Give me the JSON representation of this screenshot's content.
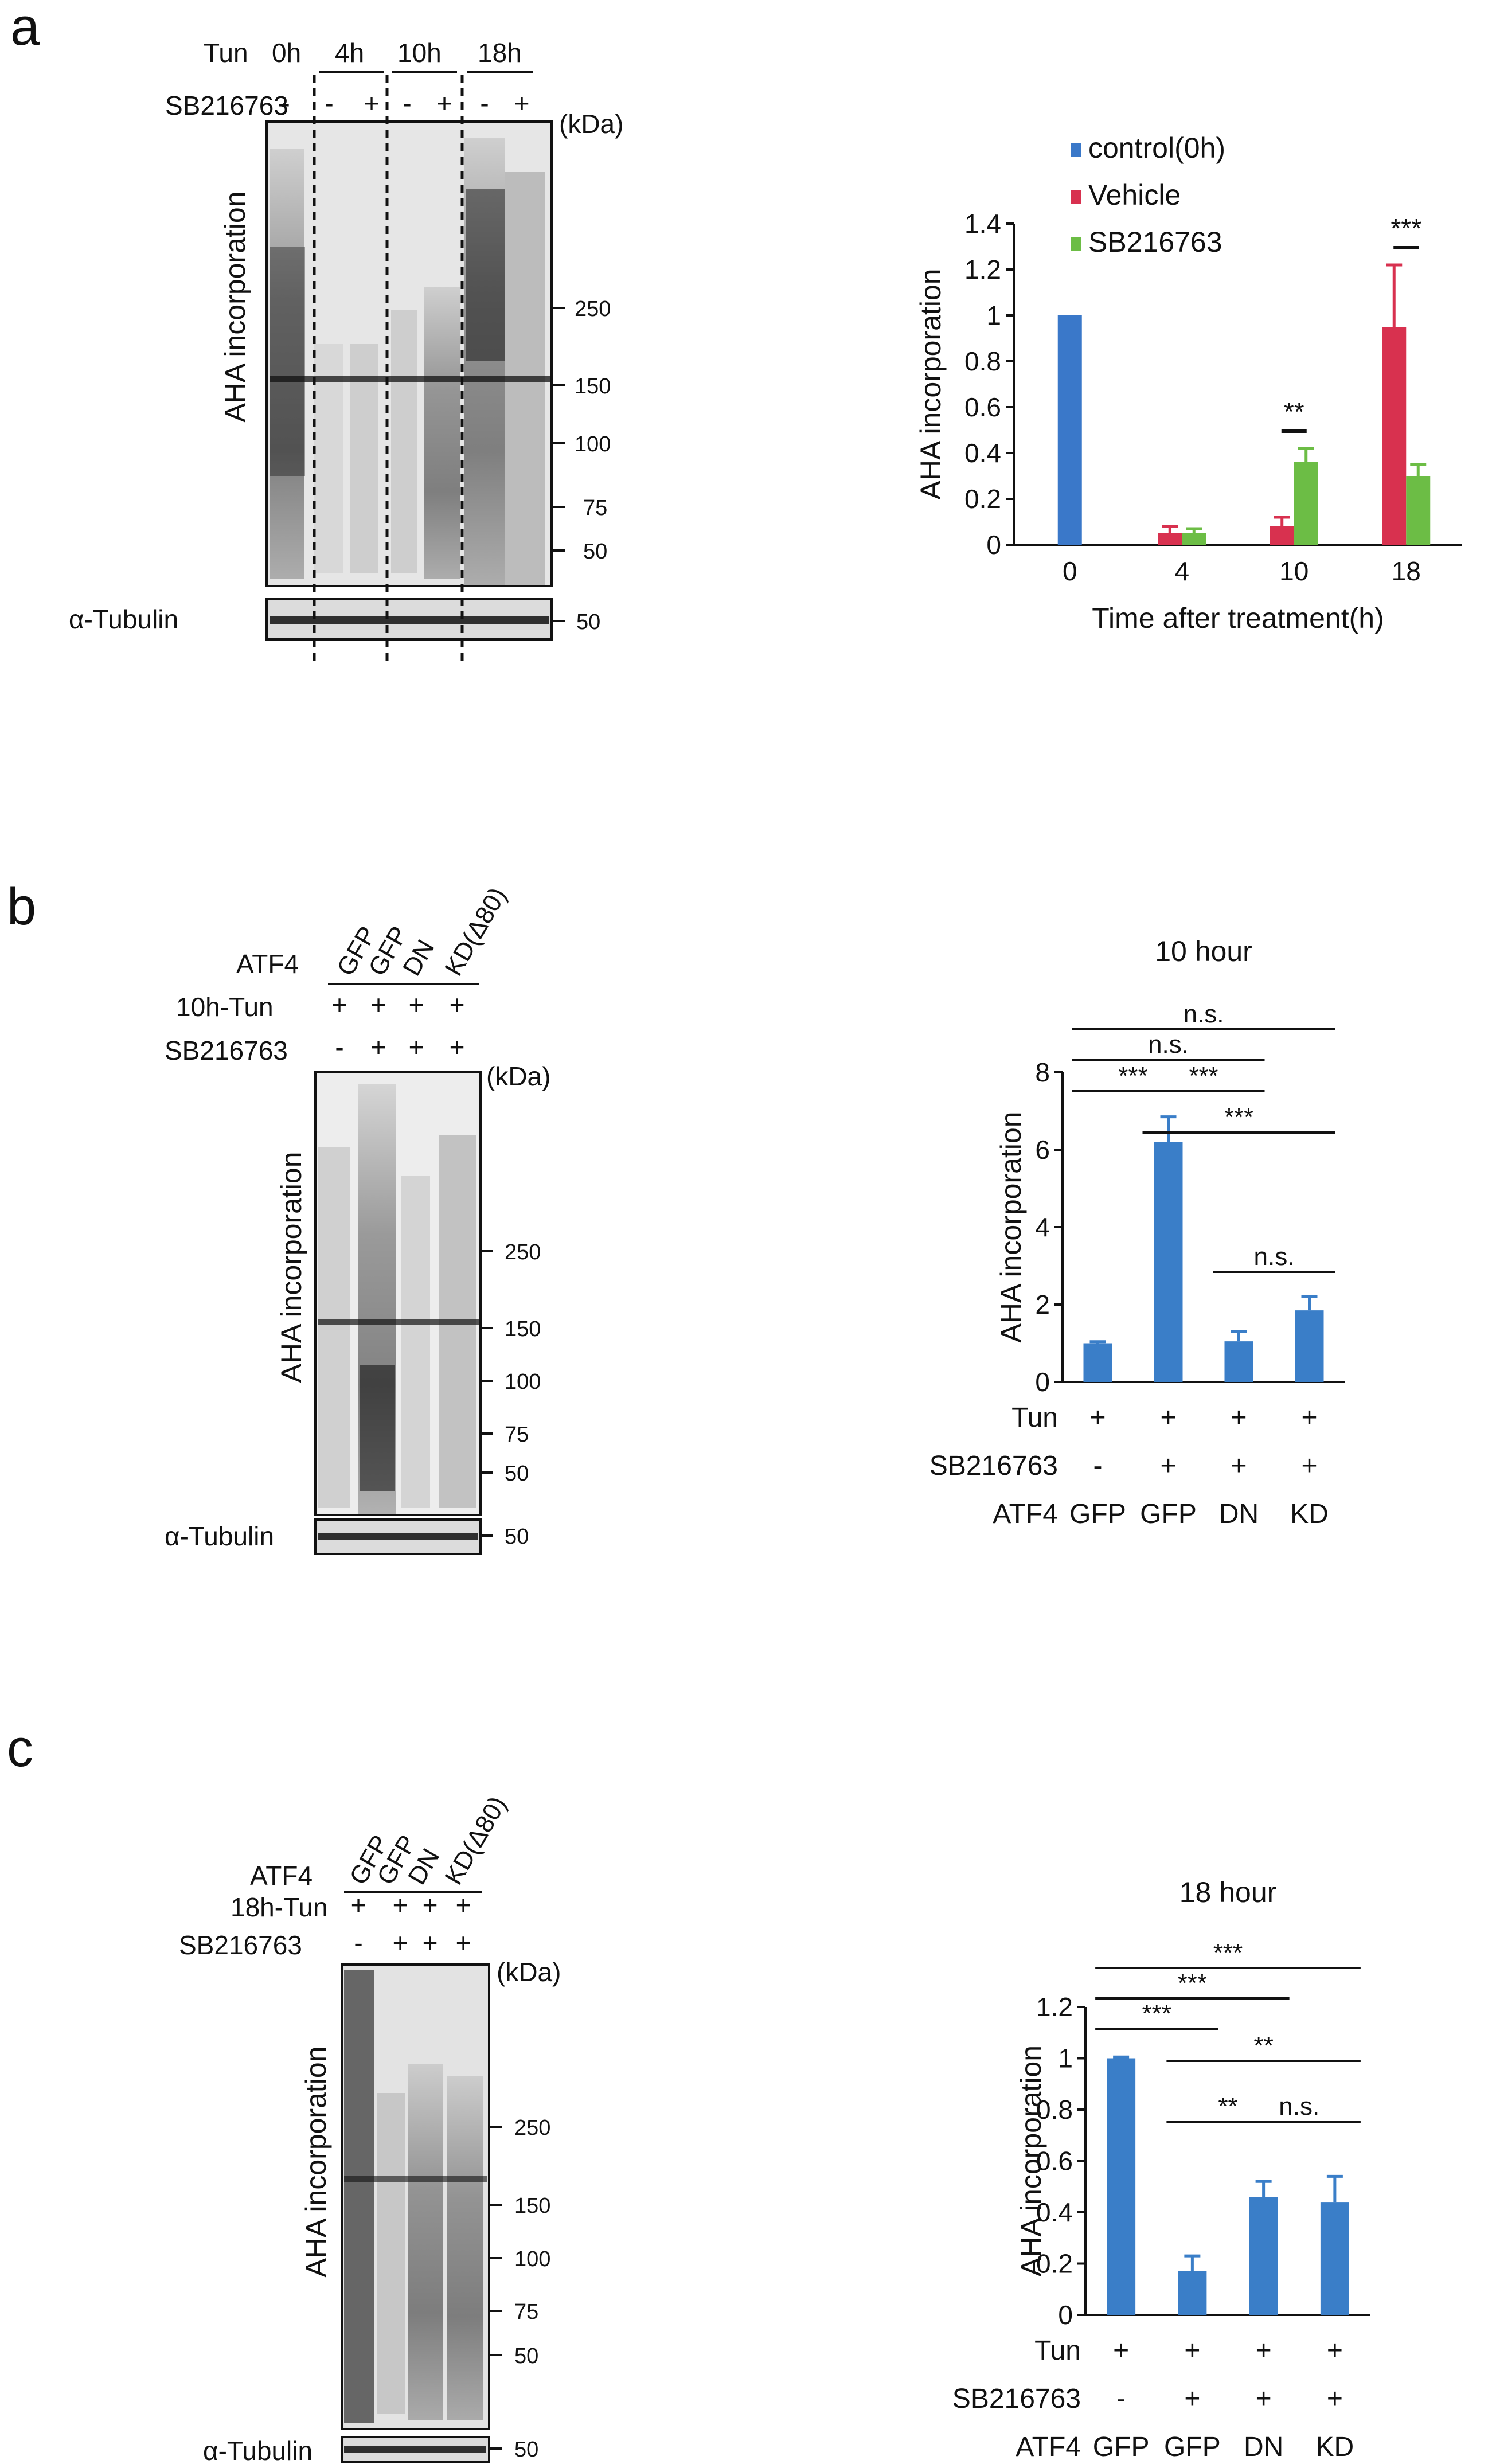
{
  "panels": {
    "a": {
      "letter": "a",
      "blot": {
        "row_tun": "Tun",
        "row_sb": "SB216763",
        "time_groups": [
          "0h",
          "4h",
          "10h",
          "18h"
        ],
        "sb_signs": [
          "-",
          "-",
          "+",
          "-",
          "+",
          "-",
          "+"
        ],
        "kda": "(kDa)",
        "markers": [
          "250",
          "150",
          "100",
          "75",
          "50"
        ],
        "ylabel": "AHA   incorporation",
        "tubulin_label": "α-Tubulin",
        "tubulin_marker": "50"
      }
    },
    "b": {
      "letter": "b",
      "blot": {
        "atf4_label": "ATF4",
        "atf4_cols": [
          "GFP",
          "GFP",
          "DN",
          "KD(Δ80)"
        ],
        "row_tun": "10h-Tun",
        "tun_signs": [
          "+",
          "+",
          "+",
          "+"
        ],
        "row_sb": "SB216763",
        "sb_signs": [
          "-",
          "+",
          "+",
          "+"
        ],
        "kda": "(kDa)",
        "markers": [
          "250",
          "150",
          "100",
          "75",
          "50"
        ],
        "ylabel": "AHA    incorporation",
        "tubulin_label": "α-Tubulin",
        "tubulin_marker": "50"
      }
    },
    "c": {
      "letter": "c",
      "blot": {
        "atf4_label": "ATF4",
        "atf4_cols": [
          "GFP",
          "GFP",
          "DN",
          "KD(Δ80)"
        ],
        "row_tun": "18h-Tun",
        "tun_signs": [
          "+",
          "+",
          "+",
          "+"
        ],
        "row_sb": "SB216763",
        "sb_signs": [
          "-",
          "+",
          "+",
          "+"
        ],
        "kda": "(kDa)",
        "markers": [
          "250",
          "150",
          "100",
          "75",
          "50"
        ],
        "ylabel": "AHA  incorporation",
        "tubulin_label": "α-Tubulin",
        "tubulin_marker": "50"
      }
    }
  },
  "chart_data": [
    {
      "panel": "a",
      "type": "bar",
      "title": "",
      "xlabel": "Time after treatment(h)",
      "ylabel": "AHA incorporation",
      "ylim": [
        0,
        1.4
      ],
      "yticks": [
        "0",
        "0.2",
        "0.4",
        "0.6",
        "0.8",
        "1",
        "1.2",
        "1.4"
      ],
      "categories": [
        "0",
        "4",
        "10",
        "18"
      ],
      "legend_position": "top",
      "series": [
        {
          "name": "control(0h)",
          "color": "#3a78c9",
          "values": [
            1.0,
            null,
            null,
            null
          ],
          "errors": [
            0,
            null,
            null,
            null
          ]
        },
        {
          "name": "Vehicle",
          "color": "#d8314f",
          "values": [
            null,
            0.05,
            0.08,
            0.95
          ],
          "errors": [
            null,
            0.03,
            0.04,
            0.27
          ]
        },
        {
          "name": "SB216763",
          "color": "#6cbd45",
          "values": [
            null,
            0.05,
            0.36,
            0.3
          ],
          "errors": [
            null,
            0.02,
            0.06,
            0.05
          ]
        }
      ],
      "annotations": [
        {
          "text": "**",
          "category": "10"
        },
        {
          "text": "***",
          "category": "18"
        }
      ]
    },
    {
      "panel": "b",
      "type": "bar",
      "title": "10 hour",
      "xlabel": "",
      "ylabel": "AHA incorporation",
      "ylim": [
        0,
        8
      ],
      "yticks": [
        "0",
        "2",
        "4",
        "6",
        "8"
      ],
      "color": "#3a7ec8",
      "values": [
        1.0,
        6.2,
        1.05,
        1.85
      ],
      "errors": [
        0.04,
        0.65,
        0.25,
        0.35
      ],
      "table": {
        "rows": [
          {
            "label": "Tun",
            "cells": [
              "+",
              "+",
              "+",
              "+"
            ]
          },
          {
            "label": "SB216763",
            "cells": [
              "-",
              "+",
              "+",
              "+"
            ]
          },
          {
            "label": "ATF4",
            "cells": [
              "GFP",
              "GFP",
              "DN",
              "KD"
            ]
          }
        ]
      },
      "significance": [
        {
          "from": 1,
          "to": 4,
          "text": "n.s."
        },
        {
          "from": 1,
          "to": 3,
          "text": "n.s."
        },
        {
          "from": 1,
          "to": 2,
          "text": "***"
        },
        {
          "from": 2,
          "to": 3,
          "text": "***"
        },
        {
          "from": 2,
          "to": 4,
          "text": "***"
        },
        {
          "from": 3,
          "to": 4,
          "text": "n.s."
        }
      ]
    },
    {
      "panel": "c",
      "type": "bar",
      "title": "18 hour",
      "xlabel": "",
      "ylabel": "AHA incorporation",
      "ylim": [
        0,
        1.2
      ],
      "yticks": [
        "0",
        "0.2",
        "0.4",
        "0.6",
        "0.8",
        "1",
        "1.2"
      ],
      "color": "#3a7ec8",
      "values": [
        1.0,
        0.17,
        0.46,
        0.44
      ],
      "errors": [
        0.005,
        0.06,
        0.06,
        0.1
      ],
      "table": {
        "rows": [
          {
            "label": "Tun",
            "cells": [
              "+",
              "+",
              "+",
              "+"
            ]
          },
          {
            "label": "SB216763",
            "cells": [
              "-",
              "+",
              "+",
              "+"
            ]
          },
          {
            "label": "ATF4",
            "cells": [
              "GFP",
              "GFP",
              "DN",
              "KD"
            ]
          }
        ]
      },
      "significance": [
        {
          "from": 1,
          "to": 4,
          "text": "***"
        },
        {
          "from": 1,
          "to": 3,
          "text": "***"
        },
        {
          "from": 1,
          "to": 2,
          "text": "***"
        },
        {
          "from": 2,
          "to": 4,
          "text": "**"
        },
        {
          "from": 2,
          "to": 3,
          "text": "**"
        },
        {
          "from": 3,
          "to": 4,
          "text": "n.s."
        }
      ]
    }
  ]
}
